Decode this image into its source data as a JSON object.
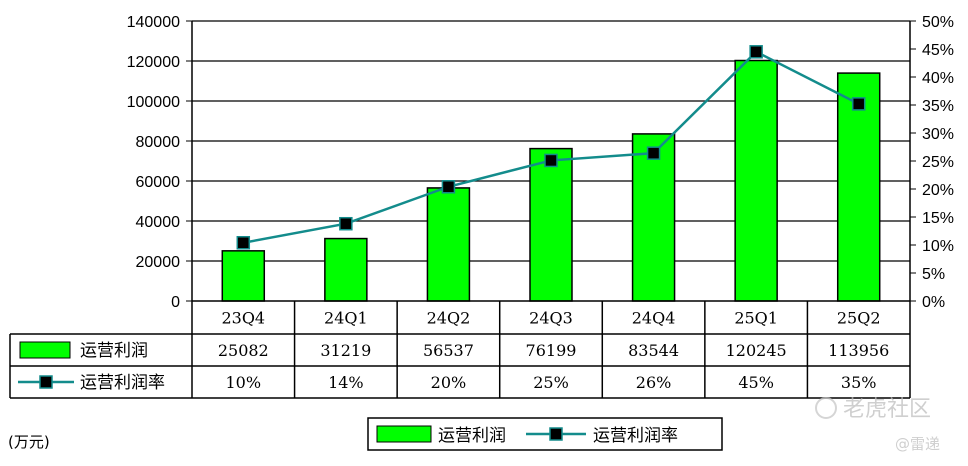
{
  "chart_data": {
    "type": "bar",
    "categories": [
      "23Q4",
      "24Q1",
      "24Q2",
      "24Q3",
      "24Q4",
      "25Q1",
      "25Q2"
    ],
    "series": [
      {
        "name": "运营利润",
        "type": "bar",
        "axis": "left",
        "color": "#00ff00",
        "values": [
          25082,
          31219,
          56537,
          76199,
          83544,
          120245,
          113956
        ]
      },
      {
        "name": "运营利润率",
        "type": "line",
        "axis": "right",
        "color": "#138c8c",
        "marker_color": "#000000",
        "values": [
          10.4,
          13.8,
          20.4,
          25.1,
          26.4,
          44.5,
          35.2
        ]
      }
    ],
    "table_values": {
      "profit": [
        "25082",
        "31219",
        "56537",
        "76199",
        "83544",
        "120245",
        "113956"
      ],
      "margin": [
        "10%",
        "14%",
        "20%",
        "25%",
        "26%",
        "45%",
        "35%"
      ]
    },
    "ylim_left": [
      0,
      140000
    ],
    "yticks_left": [
      "0",
      "20000",
      "40000",
      "60000",
      "80000",
      "100000",
      "120000",
      "140000"
    ],
    "ylim_right": [
      0,
      50
    ],
    "yticks_right": [
      "0%",
      "5%",
      "10%",
      "15%",
      "20%",
      "25%",
      "30%",
      "35%",
      "40%",
      "45%",
      "50%"
    ],
    "unit_label": "(万元)",
    "legend": [
      "运营利润",
      "运营利润率"
    ],
    "legend_position": "bottom-center",
    "grid": true,
    "watermark": {
      "text": "老虎社区",
      "sub": "@雷递"
    }
  }
}
